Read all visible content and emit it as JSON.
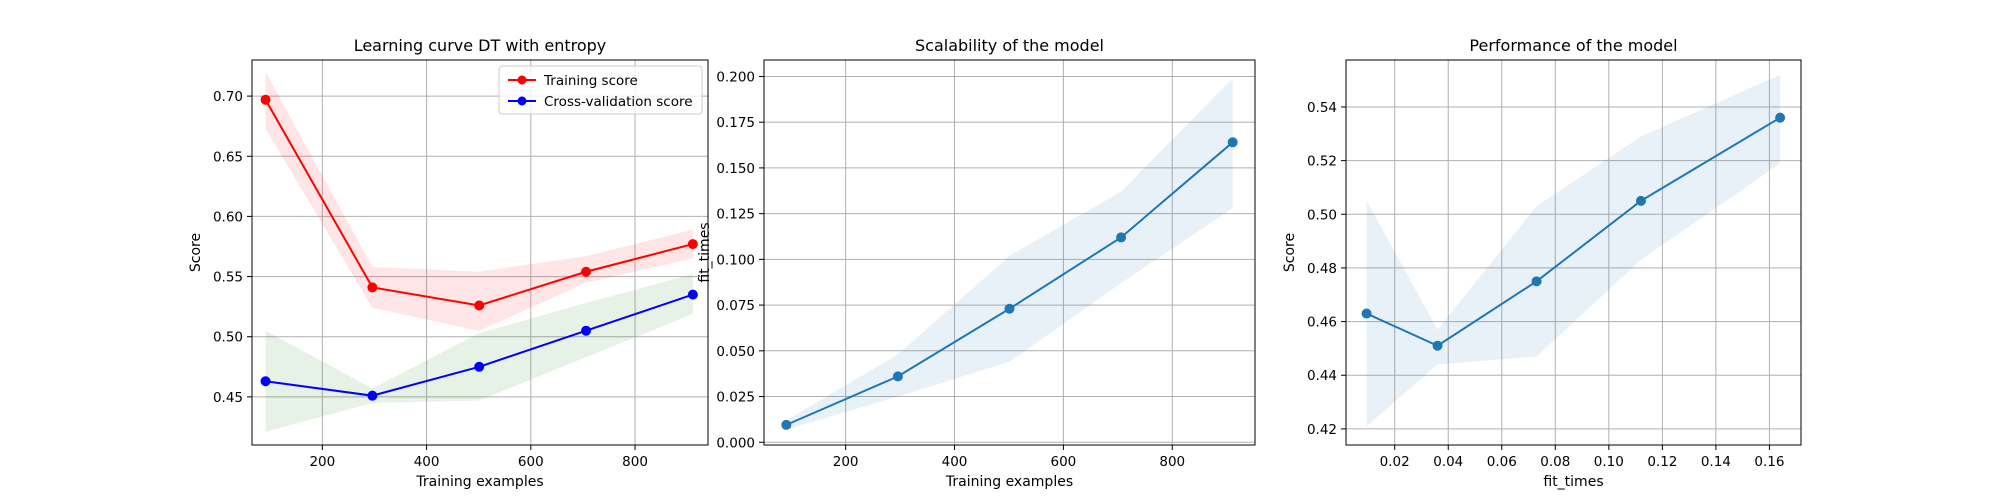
{
  "chart_data": [
    {
      "type": "line",
      "title": "Learning curve DT with entropy",
      "xlabel": "Training examples",
      "ylabel": "Score",
      "xlim": [
        65,
        940
      ],
      "ylim": [
        0.41,
        0.73
      ],
      "xticks": [
        200,
        400,
        600,
        800
      ],
      "xtick_labels": [
        "200",
        "400",
        "600",
        "800"
      ],
      "yticks": [
        0.45,
        0.5,
        0.55,
        0.6,
        0.65,
        0.7
      ],
      "ytick_labels": [
        "0.45",
        "0.50",
        "0.55",
        "0.60",
        "0.65",
        "0.70"
      ],
      "grid": true,
      "legend": "top-right",
      "x": [
        91,
        296,
        501,
        706,
        911
      ],
      "series": [
        {
          "name": "Training score",
          "color": "#ff0000",
          "fill_color": "#ff0000",
          "values": [
            0.697,
            0.541,
            0.526,
            0.554,
            0.577
          ],
          "lower": [
            0.673,
            0.524,
            0.505,
            0.545,
            0.565
          ],
          "upper": [
            0.72,
            0.558,
            0.554,
            0.567,
            0.589
          ]
        },
        {
          "name": "Cross-validation score",
          "color": "#0000ff",
          "fill_color": "#008000",
          "values": [
            0.463,
            0.451,
            0.475,
            0.505,
            0.535
          ],
          "lower": [
            0.421,
            0.445,
            0.447,
            0.483,
            0.519
          ],
          "upper": [
            0.505,
            0.457,
            0.503,
            0.528,
            0.552
          ]
        }
      ]
    },
    {
      "type": "line",
      "title": "Scalability of the model",
      "xlabel": "Training examples",
      "ylabel": "fit_times",
      "xlim": [
        50,
        952
      ],
      "ylim": [
        -0.0015,
        0.209
      ],
      "xticks": [
        200,
        400,
        600,
        800
      ],
      "xtick_labels": [
        "200",
        "400",
        "600",
        "800"
      ],
      "yticks": [
        0.0,
        0.025,
        0.05,
        0.075,
        0.1,
        0.125,
        0.15,
        0.175,
        0.2
      ],
      "ytick_labels": [
        "0.000",
        "0.025",
        "0.050",
        "0.075",
        "0.100",
        "0.125",
        "0.150",
        "0.175",
        "0.200"
      ],
      "grid": true,
      "x": [
        91,
        296,
        501,
        706,
        911
      ],
      "series": [
        {
          "color": "#1f77b4",
          "values": [
            0.0095,
            0.036,
            0.073,
            0.112,
            0.164
          ],
          "lower": [
            0.007,
            0.025,
            0.044,
            0.087,
            0.128
          ],
          "upper": [
            0.012,
            0.048,
            0.102,
            0.137,
            0.199
          ]
        }
      ]
    },
    {
      "type": "line",
      "title": "Performance of the model",
      "xlabel": "fit_times",
      "ylabel": "Score",
      "xlim": [
        0.0018,
        0.1718
      ],
      "ylim": [
        0.414,
        0.5575
      ],
      "xticks": [
        0.02,
        0.04,
        0.06,
        0.08,
        0.1,
        0.12,
        0.14,
        0.16
      ],
      "xtick_labels": [
        "0.02",
        "0.04",
        "0.06",
        "0.08",
        "0.10",
        "0.12",
        "0.14",
        "0.16"
      ],
      "yticks": [
        0.42,
        0.44,
        0.46,
        0.48,
        0.5,
        0.52,
        0.54
      ],
      "ytick_labels": [
        "0.42",
        "0.44",
        "0.46",
        "0.48",
        "0.50",
        "0.52",
        "0.54"
      ],
      "grid": true,
      "x": [
        0.0095,
        0.036,
        0.073,
        0.112,
        0.164
      ],
      "series": [
        {
          "color": "#1f77b4",
          "values": [
            0.463,
            0.451,
            0.475,
            0.505,
            0.536
          ],
          "lower": [
            0.421,
            0.444,
            0.447,
            0.483,
            0.519
          ],
          "upper": [
            0.505,
            0.457,
            0.503,
            0.529,
            0.552
          ]
        }
      ]
    }
  ]
}
